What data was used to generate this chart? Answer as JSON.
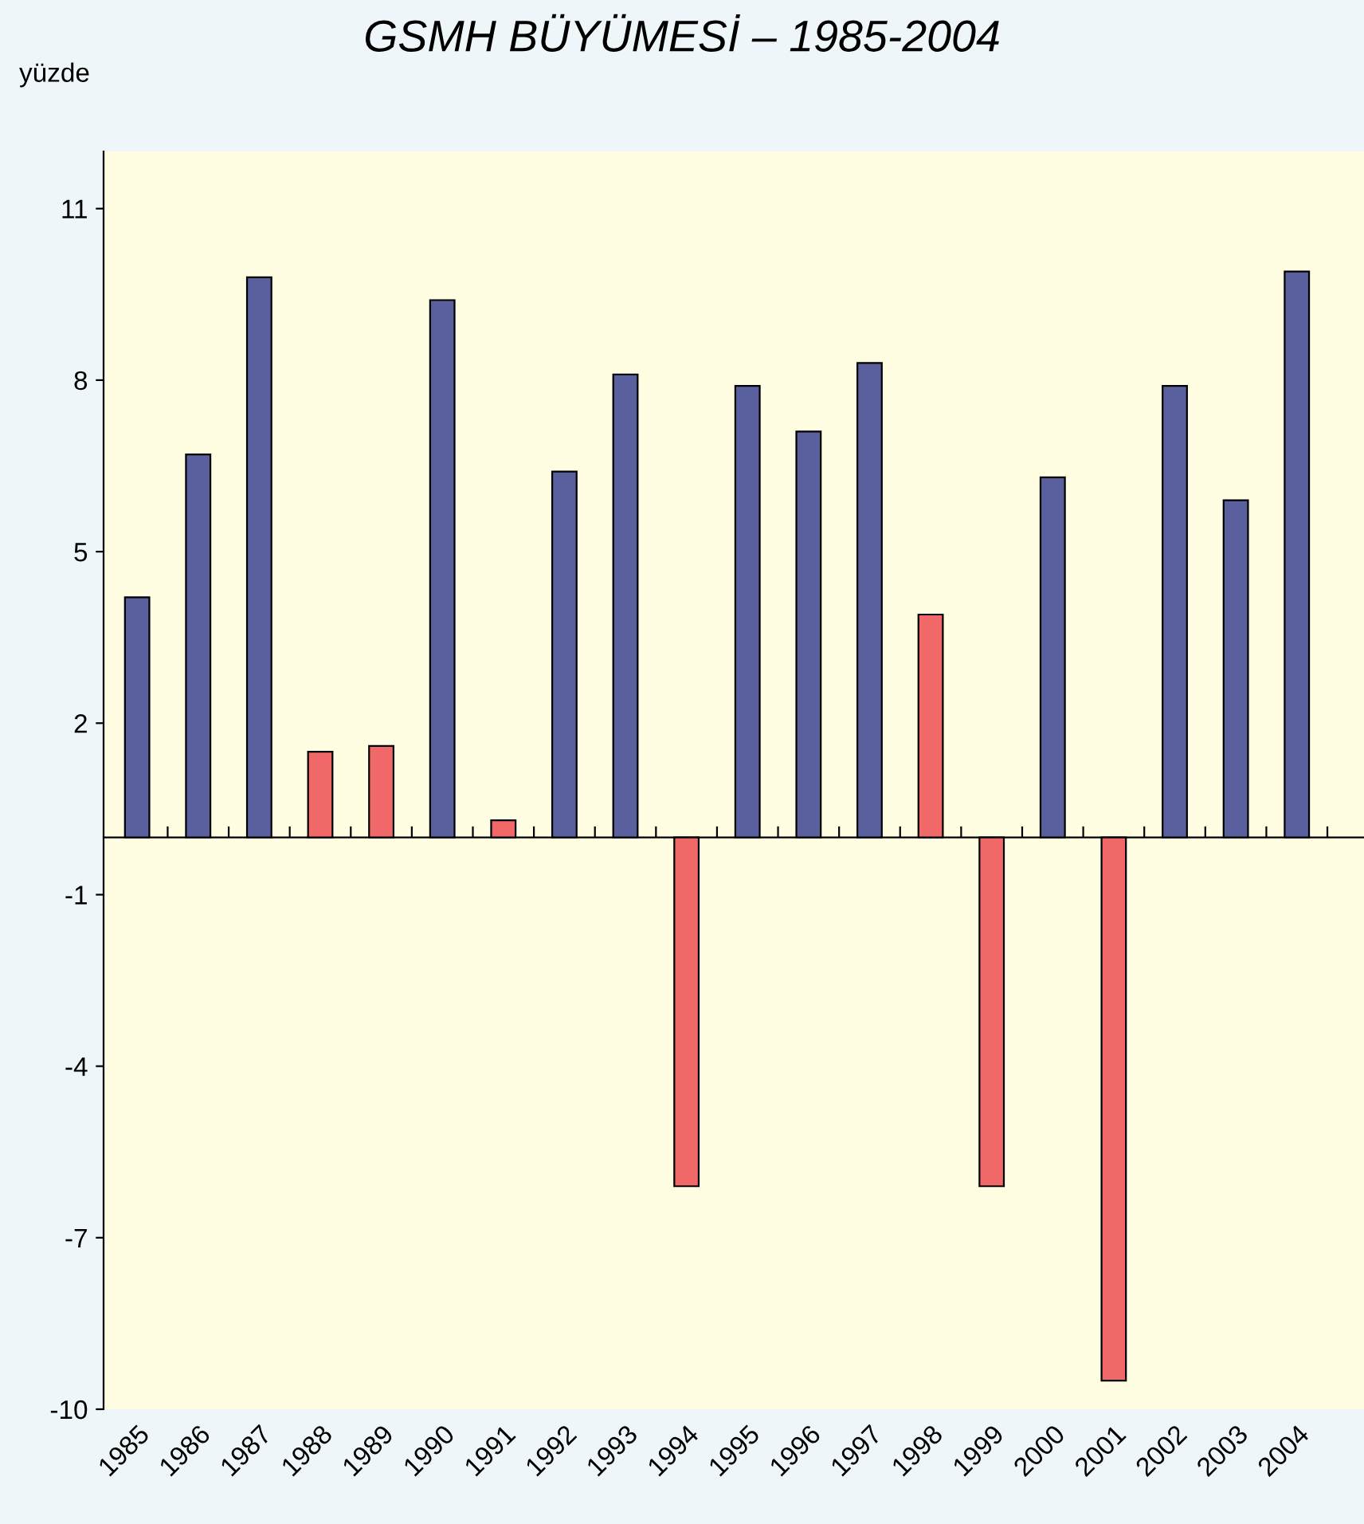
{
  "chart_data": {
    "type": "bar",
    "title": "GSMH BÜYÜMESİ – 1985-2004",
    "ylabel": "yüzde",
    "categories": [
      "1985",
      "1986",
      "1987",
      "1988",
      "1989",
      "1990",
      "1991",
      "1992",
      "1993",
      "1994",
      "1995",
      "1996",
      "1997",
      "1998",
      "1999",
      "2000",
      "2001",
      "2002",
      "2003",
      "2004"
    ],
    "values": [
      4.2,
      6.7,
      9.8,
      1.5,
      1.6,
      9.4,
      0.3,
      6.4,
      8.1,
      -6.1,
      7.9,
      7.1,
      8.3,
      3.9,
      -6.1,
      6.3,
      -9.5,
      7.9,
      5.9,
      9.9
    ],
    "colors": [
      "#5a5f9e",
      "#5a5f9e",
      "#5a5f9e",
      "#f06868",
      "#f06868",
      "#5a5f9e",
      "#f06868",
      "#5a5f9e",
      "#5a5f9e",
      "#f06868",
      "#5a5f9e",
      "#5a5f9e",
      "#5a5f9e",
      "#f06868",
      "#f06868",
      "#5a5f9e",
      "#f06868",
      "#5a5f9e",
      "#5a5f9e",
      "#5a5f9e"
    ],
    "ylim": [
      -10,
      12
    ],
    "yticks": [
      11,
      8,
      5,
      2,
      -1,
      -4,
      -7,
      -10
    ],
    "grid": false
  }
}
